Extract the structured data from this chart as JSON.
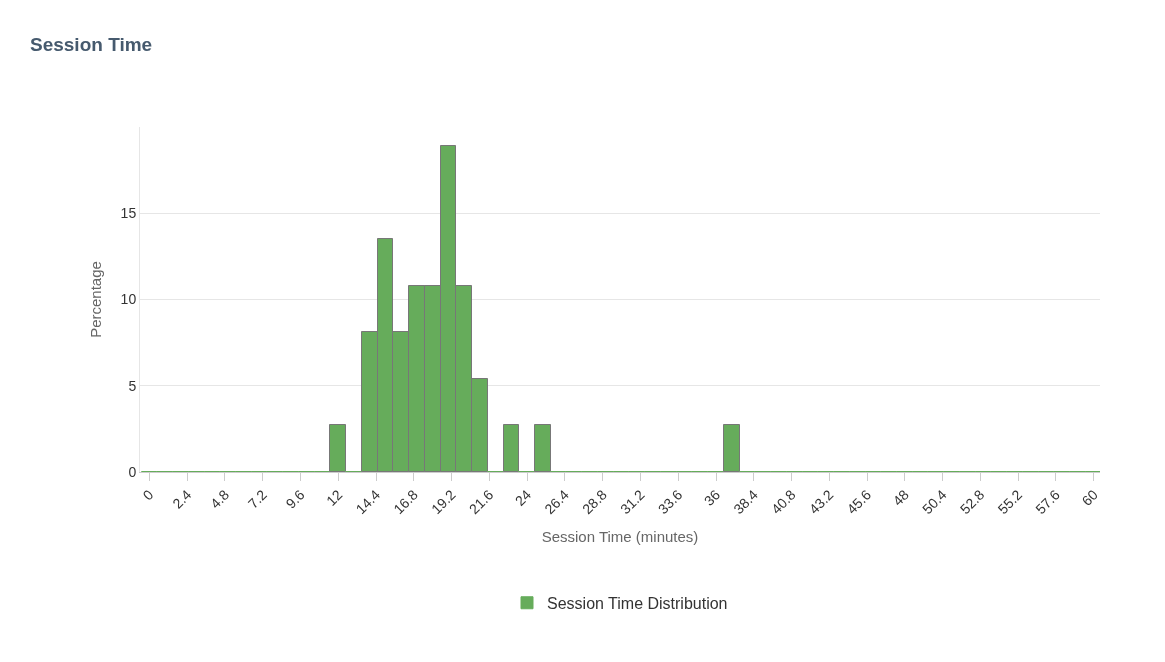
{
  "chart_data": {
    "type": "bar",
    "title": "Session Time",
    "xlabel": "Session Time (minutes)",
    "ylabel": "Percentage",
    "x": [
      0,
      1,
      2,
      3,
      4,
      5,
      6,
      7,
      8,
      9,
      10,
      11,
      12,
      13,
      14,
      15,
      16,
      17,
      18,
      19,
      20,
      21,
      22,
      23,
      24,
      25,
      26,
      27,
      28,
      29,
      30,
      31,
      32,
      33,
      34,
      35,
      36,
      37,
      38,
      39,
      40,
      41,
      42,
      43,
      44,
      45,
      46,
      47,
      48,
      49,
      50,
      51,
      52,
      53,
      54,
      55,
      56,
      57,
      58,
      59,
      60
    ],
    "series": [
      {
        "name": "Session Time Distribution",
        "color": "#66ac5b",
        "values": [
          0,
          0,
          0,
          0,
          0,
          0,
          0,
          0,
          0,
          0,
          0,
          0,
          2.7,
          0,
          8.1,
          13.5,
          8.1,
          10.8,
          10.8,
          18.9,
          10.8,
          5.4,
          0,
          2.7,
          0,
          2.7,
          0,
          0,
          0,
          0,
          0,
          0,
          0,
          0,
          0,
          0,
          0,
          2.7,
          0,
          0,
          0,
          0,
          0,
          0,
          0,
          0,
          0,
          0,
          0,
          0,
          0,
          0,
          0,
          0,
          0,
          0,
          0,
          0,
          0,
          0,
          0
        ]
      }
    ],
    "xlim": [
      -0.6,
      60.4
    ],
    "xticks": [
      0,
      2.4,
      4.8,
      7.2,
      9.6,
      12,
      14.4,
      16.8,
      19.2,
      21.6,
      24,
      26.4,
      28.8,
      31.2,
      33.6,
      36,
      38.4,
      40.8,
      43.2,
      45.6,
      48,
      50.4,
      52.8,
      55.2,
      57.6,
      60
    ],
    "ylim": [
      0,
      20
    ],
    "yticks": [
      0,
      5,
      10,
      15
    ],
    "grid": "y",
    "legend": "bottom"
  }
}
